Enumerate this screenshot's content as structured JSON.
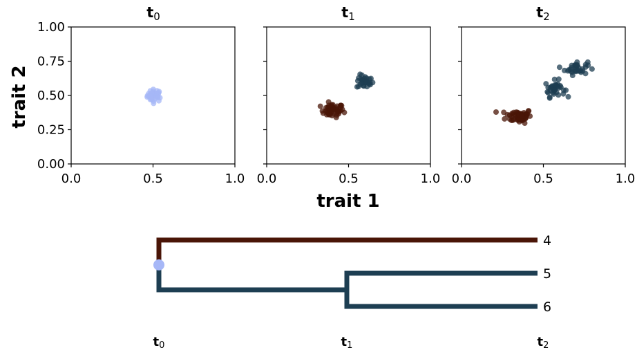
{
  "chart_data": [
    {
      "type": "scatter",
      "title_main": "t",
      "title_sub": "0",
      "xlabel": "trait 1",
      "ylabel": "trait 2",
      "xlim": [
        0,
        1
      ],
      "ylim": [
        0,
        1
      ],
      "xticks": [
        "0.0",
        "0.5",
        "1.0"
      ],
      "yticks": [
        "0.00",
        "0.25",
        "0.50",
        "0.75",
        "1.00"
      ],
      "series": [
        {
          "color": "#a6b7f7",
          "center": [
            0.51,
            0.5
          ],
          "spread": [
            0.022,
            0.022
          ],
          "count": 40
        }
      ]
    },
    {
      "type": "scatter",
      "title_main": "t",
      "title_sub": "1",
      "xlim": [
        0,
        1
      ],
      "ylim": [
        0,
        1
      ],
      "xticks": [
        "0.0",
        "0.5",
        "1.0"
      ],
      "series": [
        {
          "color": "#4a1507",
          "center": [
            0.4,
            0.39
          ],
          "spread": [
            0.035,
            0.025
          ],
          "count": 50
        },
        {
          "color": "#1d3e52",
          "center": [
            0.6,
            0.6
          ],
          "spread": [
            0.025,
            0.025
          ],
          "count": 30
        }
      ]
    },
    {
      "type": "scatter",
      "title_main": "t",
      "title_sub": "2",
      "xlim": [
        0,
        1
      ],
      "ylim": [
        0,
        1
      ],
      "xticks": [
        "0.0",
        "0.5",
        "1.0"
      ],
      "series": [
        {
          "color": "#4a1507",
          "center": [
            0.35,
            0.35
          ],
          "spread": [
            0.04,
            0.025
          ],
          "count": 60
        },
        {
          "color": "#1d3e52",
          "center": [
            0.57,
            0.55
          ],
          "spread": [
            0.03,
            0.03
          ],
          "count": 35
        },
        {
          "color": "#1d3e52",
          "center": [
            0.7,
            0.7
          ],
          "spread": [
            0.035,
            0.025
          ],
          "count": 35
        }
      ]
    }
  ],
  "tree": {
    "root_color": "#a6b7f7",
    "branches": [
      {
        "color": "#4a1507",
        "leaf_label": "4"
      },
      {
        "color": "#1d3e52",
        "leaf_label": "5"
      },
      {
        "color": "#1d3e52",
        "leaf_label": "6"
      }
    ],
    "split_time": 1,
    "times": [
      {
        "main": "t",
        "sub": "0"
      },
      {
        "main": "t",
        "sub": "1"
      },
      {
        "main": "t",
        "sub": "2"
      }
    ]
  }
}
